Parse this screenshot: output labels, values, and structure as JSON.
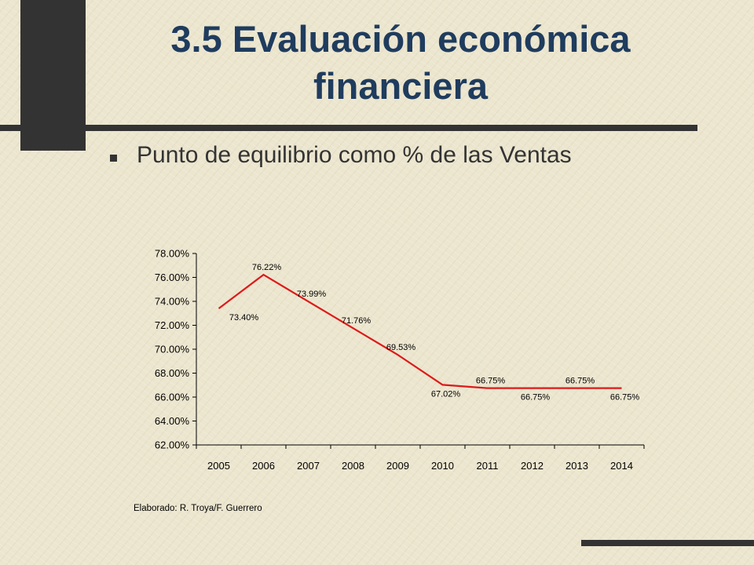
{
  "slide": {
    "title": "3.5 Evaluación económica financiera",
    "bullet": "Punto de equilibrio como % de las Ventas",
    "footnote": "Elaborado: R. Troya/F. Guerrero"
  },
  "chart_data": {
    "type": "line",
    "categories": [
      "2005",
      "2006",
      "2007",
      "2008",
      "2009",
      "2010",
      "2011",
      "2012",
      "2013",
      "2014"
    ],
    "values": [
      73.4,
      76.22,
      73.99,
      71.76,
      69.53,
      67.02,
      66.75,
      66.75,
      66.75,
      66.75
    ],
    "data_labels": [
      "73.40%",
      "76.22%",
      "73.99%",
      "71.76%",
      "69.53%",
      "67.02%",
      "66.75%",
      "66.75%",
      "66.75%",
      "66.75%"
    ],
    "label_positions": [
      "below",
      "above",
      "above",
      "above",
      "above",
      "below",
      "above",
      "below",
      "above",
      "below"
    ],
    "ylim": [
      62,
      78
    ],
    "yticks": [
      "62.00%",
      "64.00%",
      "66.00%",
      "68.00%",
      "70.00%",
      "72.00%",
      "74.00%",
      "76.00%",
      "78.00%"
    ],
    "line_color": "#dd1a1a",
    "grid": false,
    "legend": "none"
  }
}
